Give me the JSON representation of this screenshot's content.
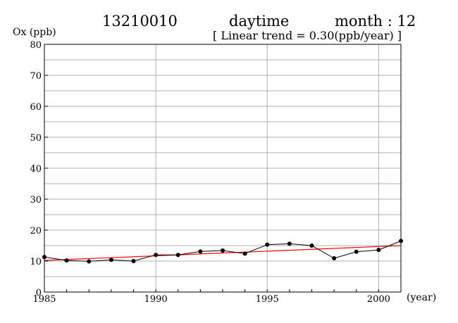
{
  "header": {
    "station": "13210010",
    "period": "daytime",
    "month": "month : 12",
    "trend": "[ Linear trend = 0.30(ppb/year) ]"
  },
  "colors": {
    "series": "#000000",
    "trend": "#ff0000",
    "grid": "#b0b0b0"
  },
  "chart_data": {
    "type": "line",
    "title": "13210010 daytime month : 12",
    "subtitle": "[ Linear trend = 0.30(ppb/year) ]",
    "xlabel": "(year)",
    "ylabel": "Ox (ppb)",
    "xlim": [
      1985,
      2001
    ],
    "ylim": [
      0,
      80
    ],
    "x_ticks": [
      1985,
      1990,
      1995,
      2000
    ],
    "y_ticks": [
      0,
      10,
      20,
      30,
      40,
      50,
      60,
      70,
      80
    ],
    "grid": true,
    "series": [
      {
        "x": [
          1985,
          1986,
          1987,
          1988,
          1989,
          1990,
          1991,
          1992,
          1993,
          1994,
          1995,
          1996,
          1997,
          1998,
          1999,
          2000,
          2001
        ],
        "y": [
          11.3,
          10.2,
          9.9,
          10.4,
          10.0,
          12.0,
          12.0,
          13.1,
          13.4,
          12.4,
          15.3,
          15.6,
          15.0,
          10.9,
          13.0,
          13.6,
          16.5
        ]
      }
    ],
    "trend_line": {
      "x": [
        1985,
        2001
      ],
      "y": [
        10.2,
        15.0
      ]
    }
  }
}
